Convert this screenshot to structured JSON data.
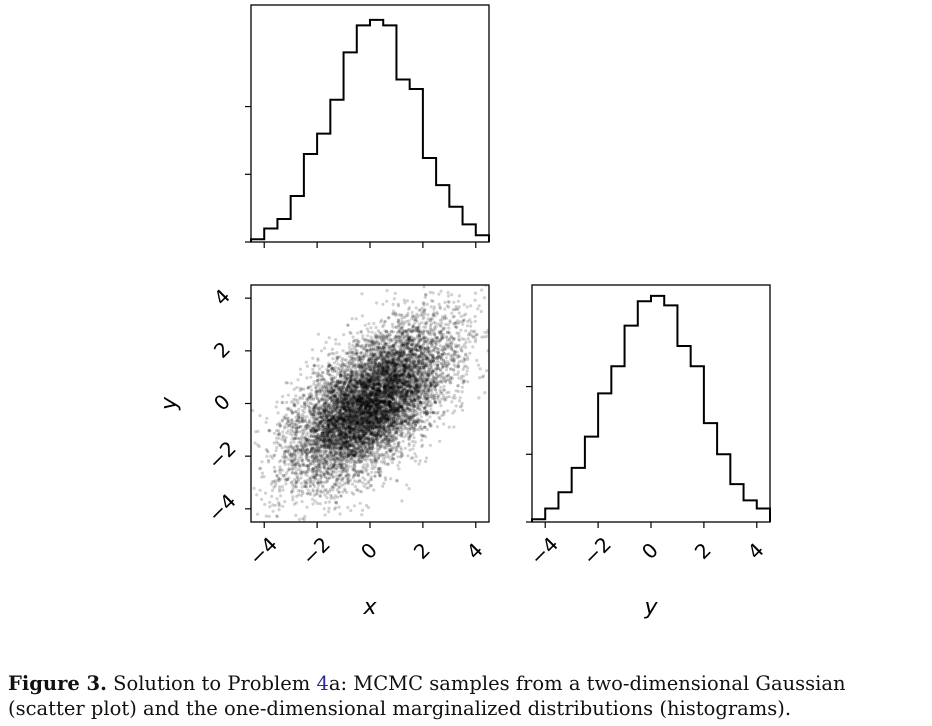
{
  "chart_data": [
    {
      "type": "histogram",
      "panel": "x-marginal",
      "bin_edges": [
        -4.5,
        -4.0,
        -3.5,
        -3.0,
        -2.5,
        -2.0,
        -1.5,
        -1.0,
        -0.5,
        0.0,
        0.5,
        1.0,
        1.5,
        2.0,
        2.5,
        3.0,
        3.5,
        4.0,
        4.5
      ],
      "counts": [
        2,
        10,
        17,
        34,
        65,
        80,
        105,
        140,
        160,
        164,
        160,
        120,
        113,
        62,
        42,
        26,
        13,
        5
      ],
      "xlim": [
        -4.5,
        4.5
      ],
      "ylim": [
        0,
        175
      ],
      "xticks": [
        -4,
        -2,
        0,
        2,
        4
      ],
      "yticks": [
        0,
        50,
        100
      ],
      "ytick_labels_shown": false,
      "xtick_labels_shown": false
    },
    {
      "type": "scatter",
      "panel": "joint",
      "xlabel": "x",
      "ylabel": "y",
      "xlim": [
        -4.5,
        4.5
      ],
      "ylim": [
        -4.5,
        4.5
      ],
      "xticks": [
        "−4",
        "−2",
        "0",
        "2",
        "4"
      ],
      "yticks": [
        "−4",
        "−2",
        "0",
        "2",
        "4"
      ],
      "distribution": {
        "mean": [
          0,
          0
        ],
        "std": [
          1.5,
          1.5
        ],
        "correlation": 0.6,
        "n_samples": 9000
      },
      "point_color": "#000000",
      "point_alpha": 0.18
    },
    {
      "type": "histogram",
      "panel": "y-marginal",
      "xlabel": "y",
      "bin_edges": [
        -4.5,
        -4.0,
        -3.5,
        -3.0,
        -2.5,
        -2.0,
        -1.5,
        -1.0,
        -0.5,
        0.0,
        0.5,
        1.0,
        1.5,
        2.0,
        2.5,
        3.0,
        3.5,
        4.0,
        4.5
      ],
      "counts": [
        2,
        10,
        22,
        40,
        63,
        95,
        115,
        145,
        163,
        167,
        160,
        130,
        115,
        73,
        50,
        28,
        16,
        10
      ],
      "xlim": [
        -4.5,
        4.5
      ],
      "ylim": [
        0,
        175
      ],
      "xticks": [
        "−4",
        "−2",
        "0",
        "2",
        "4"
      ],
      "yticks": [
        0,
        50,
        100
      ],
      "ytick_labels_shown": false
    }
  ],
  "caption": {
    "label": "Figure 3.",
    "text_before_ref": " Solution to Problem ",
    "ref": "4",
    "text_after_ref": "a: MCMC samples from a two-dimensional Gaussian (scatter plot) and the one-dimensional marginalized distributions (histograms)."
  }
}
